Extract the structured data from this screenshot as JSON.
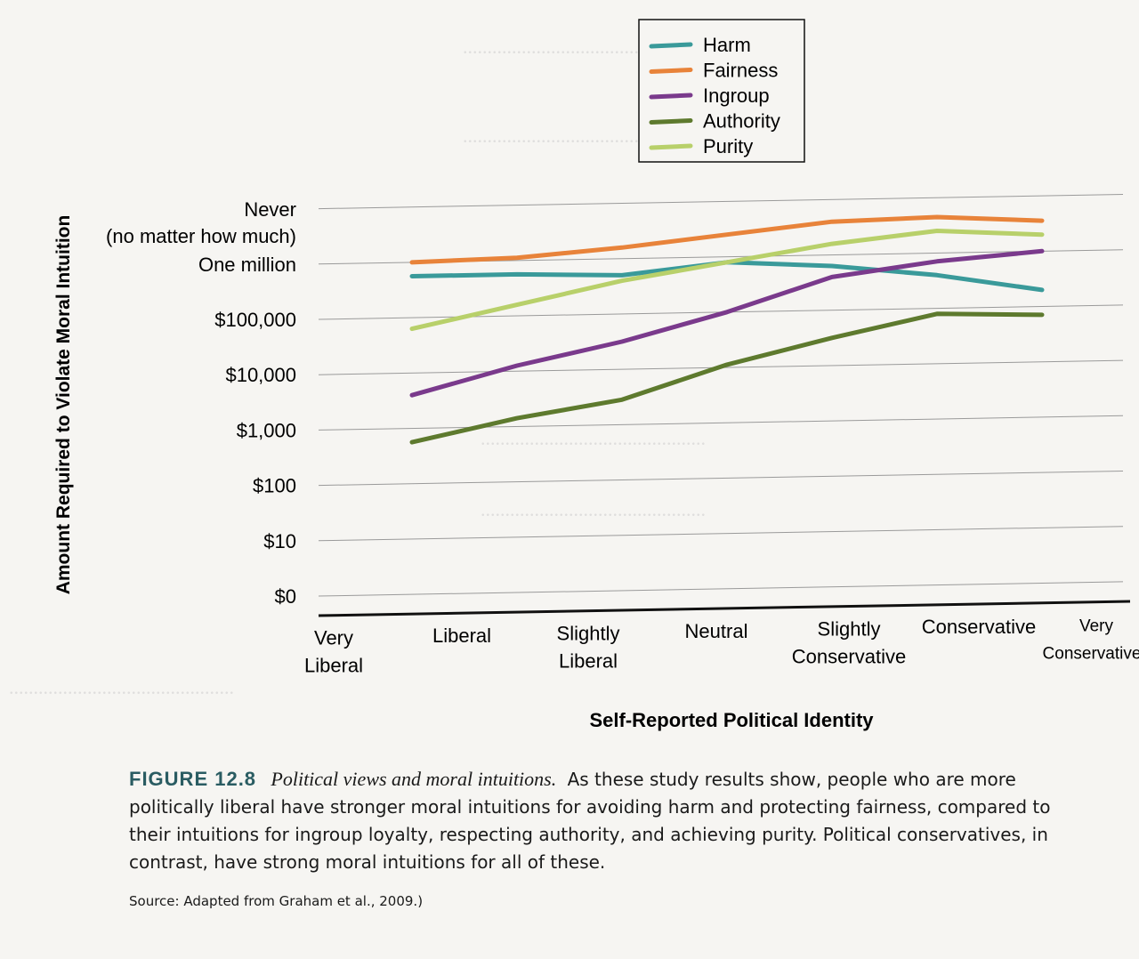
{
  "chart_data": {
    "type": "line",
    "ylabel": "Amount Required to Violate Moral Intuition",
    "xlabel": "Self-Reported Political Identity",
    "y_ticks": [
      "$0",
      "$10",
      "$100",
      "$1,000",
      "$10,000",
      "$100,000",
      "One million",
      "Never (no matter how much)"
    ],
    "y_tick_lines": [
      [
        "$0"
      ],
      [
        "$10"
      ],
      [
        "$100"
      ],
      [
        "$1,000"
      ],
      [
        "$10,000"
      ],
      [
        "$100,000"
      ],
      [
        "One million"
      ],
      [
        "Never",
        "(no matter how much)"
      ]
    ],
    "categories": [
      "Very Liberal",
      "Liberal",
      "Slightly Liberal",
      "Neutral",
      "Slightly Conservative",
      "Conservative",
      "Very Conservative"
    ],
    "category_lines": [
      [
        "Very",
        "Liberal"
      ],
      [
        "Liberal"
      ],
      [
        "Slightly",
        "Liberal"
      ],
      [
        "Neutral"
      ],
      [
        "Slightly",
        "Conservative"
      ],
      [
        "Conservative"
      ],
      [
        "Very",
        "Conservative"
      ]
    ],
    "series": [
      {
        "name": "Harm",
        "color": "#3a9a9a",
        "values": [
          5.75,
          5.75,
          5.7,
          5.9,
          5.8,
          5.6,
          5.3
        ]
      },
      {
        "name": "Fairness",
        "color": "#e8833a",
        "values": [
          6.0,
          6.05,
          6.2,
          6.4,
          6.6,
          6.65,
          6.55
        ]
      },
      {
        "name": "Ingroup",
        "color": "#7a3a8c",
        "values": [
          3.6,
          4.1,
          4.5,
          5.0,
          5.6,
          5.85,
          6.0
        ]
      },
      {
        "name": "Authority",
        "color": "#5e7a2e",
        "values": [
          2.75,
          3.15,
          3.45,
          4.05,
          4.5,
          4.9,
          4.85
        ]
      },
      {
        "name": "Purity",
        "color": "#b8d06a",
        "values": [
          4.8,
          5.2,
          5.6,
          5.9,
          6.2,
          6.4,
          6.3
        ]
      }
    ],
    "legend": "top-right"
  },
  "caption": {
    "label": "FIGURE 12.8",
    "title": "Political views and moral intuitions.",
    "text": "As these study results show, people who are more politically liberal have stronger moral intuitions for avoiding harm and protecting fairness, compared to their intuitions for ingroup loyalty, respecting authority, and achieving purity. Political conservatives, in contrast, have strong moral intuitions for all of these.",
    "source": "Source: Adapted from Graham et al., 2009.)"
  }
}
